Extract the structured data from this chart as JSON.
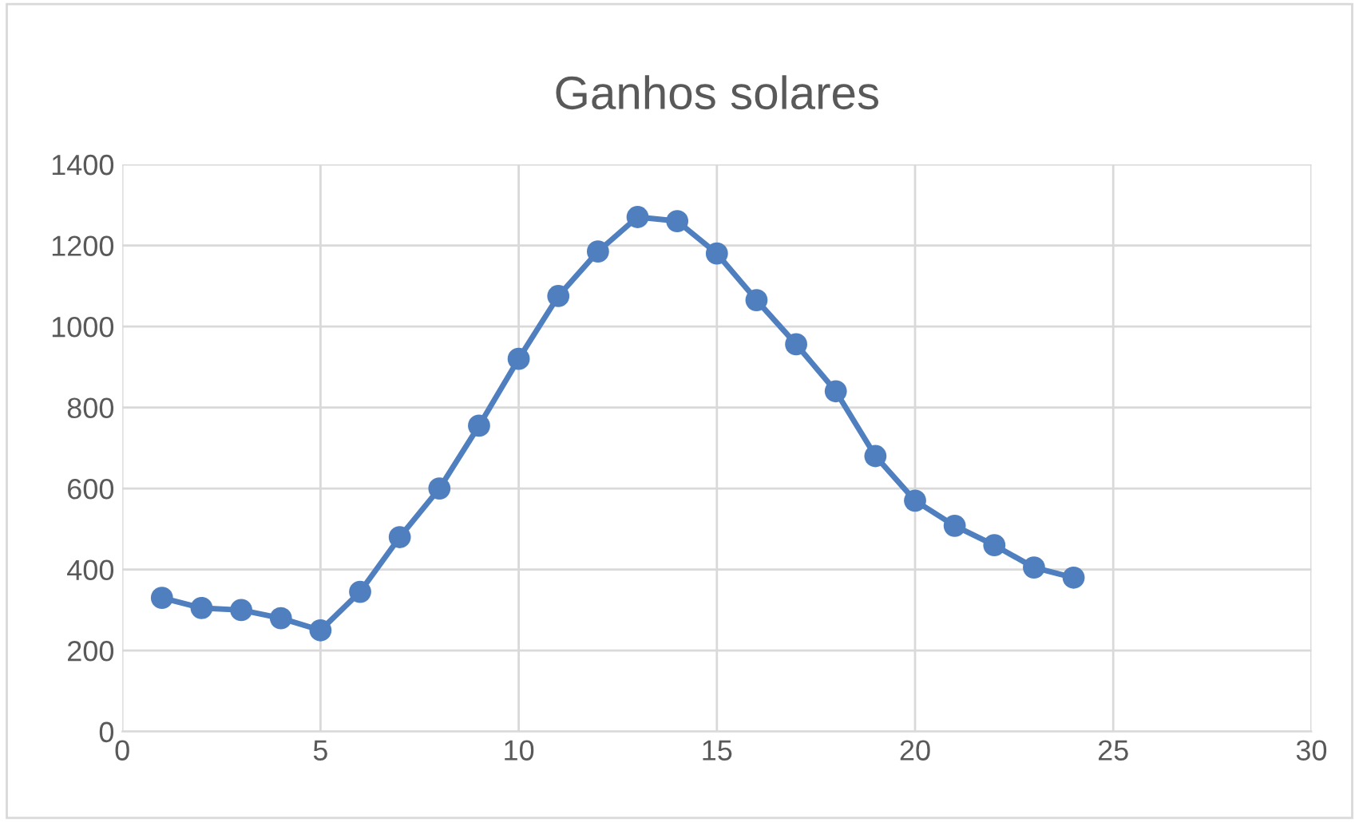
{
  "chart_data": {
    "type": "line",
    "title": "Ganhos solares",
    "x": [
      1,
      2,
      3,
      4,
      5,
      6,
      7,
      8,
      9,
      10,
      11,
      12,
      13,
      14,
      15,
      16,
      17,
      18,
      19,
      20,
      21,
      22,
      23,
      24
    ],
    "series": [
      {
        "color": "#4f7fbf",
        "values": [
          330,
          305,
          300,
          280,
          250,
          345,
          480,
          600,
          755,
          920,
          1075,
          1185,
          1270,
          1260,
          1180,
          1065,
          956,
          840,
          680,
          570,
          508,
          460,
          405,
          380
        ]
      }
    ],
    "xlim": [
      0,
      30
    ],
    "xticks": [
      0,
      5,
      10,
      15,
      20,
      25,
      30
    ],
    "ylim": [
      0,
      1400
    ],
    "yticks": [
      0,
      200,
      400,
      600,
      800,
      1000,
      1200,
      1400
    ],
    "grid": true,
    "marker": "circle",
    "line_style": "solid",
    "legend": false
  }
}
